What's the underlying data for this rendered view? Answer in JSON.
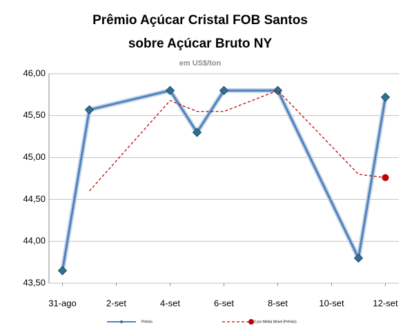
{
  "chart_data": {
    "type": "line",
    "title": [
      "Prêmio Açúcar Cristal FOB Santos",
      "sobre Açúcar Bruto NY"
    ],
    "subtitle": "em US$/ton",
    "x": [
      0,
      1,
      4,
      5,
      6,
      8,
      11,
      12
    ],
    "xlim": [
      -0.5,
      12.5
    ],
    "xticks": [
      {
        "value": 0,
        "label": "31-ago"
      },
      {
        "value": 2,
        "label": "2-set"
      },
      {
        "value": 4,
        "label": "4-set"
      },
      {
        "value": 6,
        "label": "6-set"
      },
      {
        "value": 8,
        "label": "8-set"
      },
      {
        "value": 10,
        "label": "10-set"
      },
      {
        "value": 12,
        "label": "12-set"
      }
    ],
    "ylim": [
      43.5,
      46.0
    ],
    "yticks": [
      {
        "value": 43.5,
        "label": "43,50"
      },
      {
        "value": 44.0,
        "label": "44,00"
      },
      {
        "value": 44.5,
        "label": "44,50"
      },
      {
        "value": 45.0,
        "label": "45,00"
      },
      {
        "value": 45.5,
        "label": "45,50"
      },
      {
        "value": 46.0,
        "label": "46,00"
      }
    ],
    "grid": true,
    "legend": "bottom",
    "series": [
      {
        "name": "Prêmio",
        "color": "#4f81bd",
        "marker": "diamond",
        "values": [
          43.65,
          45.57,
          45.8,
          45.3,
          45.8,
          45.8,
          43.8,
          45.72
        ]
      },
      {
        "name": "2 por Média Móvel (Prêmio)",
        "color": "#c00000",
        "marker": "end-circle",
        "dashed": true,
        "values": [
          null,
          44.6,
          45.68,
          45.55,
          45.55,
          45.8,
          44.8,
          44.76
        ]
      }
    ]
  }
}
